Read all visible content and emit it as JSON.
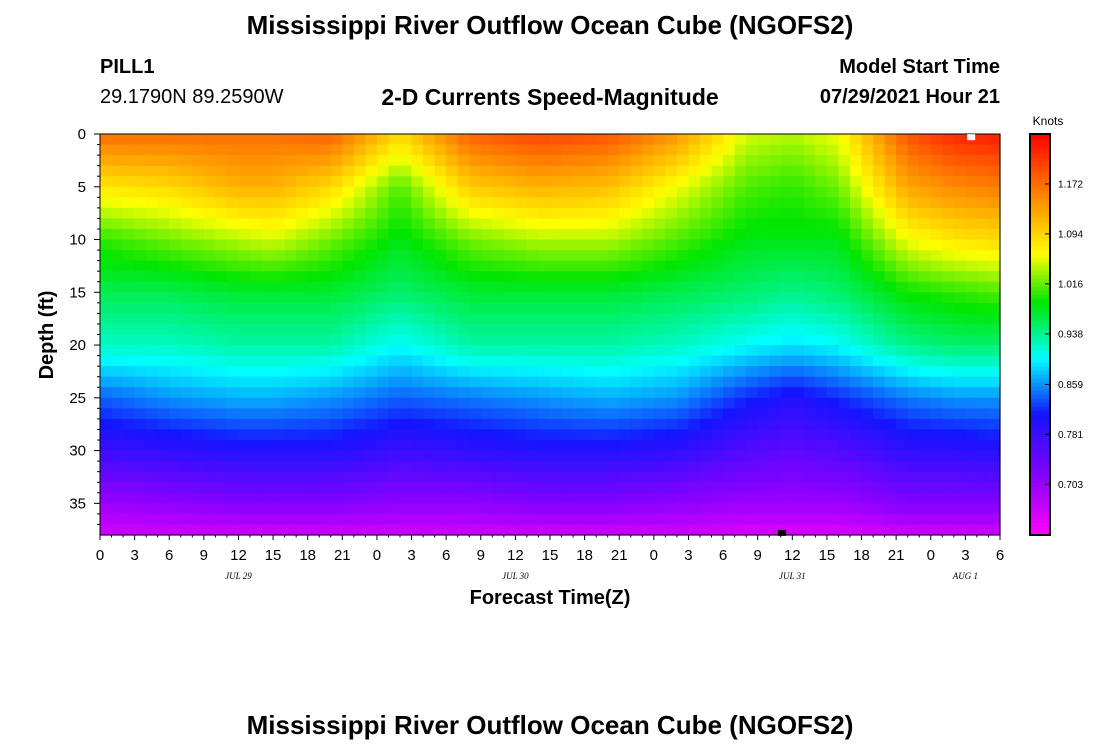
{
  "header": {
    "title": "Mississippi River Outflow Ocean Cube (NGOFS2)",
    "station_id": "PILL1",
    "station_coords": "29.1790N  89.2590W",
    "plot_title": "2-D Currents Speed-Magnitude",
    "model_start_label": "Model Start Time",
    "model_start_value": "07/29/2021 Hour 21"
  },
  "footer": {
    "title": "Mississippi River Outflow Ocean Cube (NGOFS2)"
  },
  "chart_data": {
    "type": "heatmap",
    "title": "2-D Currents Speed-Magnitude",
    "xlabel": "Forecast Time(Z)",
    "ylabel": "Depth (ft)",
    "x_hours_range": [
      0,
      78
    ],
    "y_range": [
      0,
      38
    ],
    "y_inverted": true,
    "x_tick_labels": [
      "0",
      "3",
      "6",
      "9",
      "12",
      "15",
      "18",
      "21",
      "0",
      "3",
      "6",
      "9",
      "12",
      "15",
      "18",
      "21",
      "0",
      "3",
      "6",
      "9",
      "12",
      "15",
      "18",
      "21",
      "0",
      "3",
      "6"
    ],
    "date_labels": [
      {
        "label": "JUL 29",
        "hour": 12
      },
      {
        "label": "JUL 30",
        "hour": 36
      },
      {
        "label": "JUL 31",
        "hour": 60
      },
      {
        "label": "AUG 1",
        "hour": 75
      }
    ],
    "y_ticks": [
      0,
      5,
      10,
      15,
      20,
      25,
      30,
      35
    ],
    "colorbar": {
      "title": "Knots",
      "range": [
        0.624,
        1.25
      ],
      "tick_values": [
        1.172,
        1.094,
        1.016,
        0.938,
        0.859,
        0.781,
        0.703
      ],
      "tick_labels": [
        "1.172",
        "1.094",
        "1.016",
        "0.938",
        "0.859",
        "0.781",
        "0.703"
      ]
    },
    "profile_depths_ft": [
      0,
      5,
      10,
      15,
      20,
      25,
      30,
      35,
      38
    ],
    "profiles": [
      {
        "hour": 0,
        "speeds": [
          1.17,
          1.08,
          1.0,
          0.96,
          0.92,
          0.84,
          0.78,
          0.7,
          0.66
        ]
      },
      {
        "hour": 6,
        "speeds": [
          1.17,
          1.09,
          1.02,
          0.96,
          0.92,
          0.86,
          0.79,
          0.71,
          0.66
        ]
      },
      {
        "hour": 12,
        "speeds": [
          1.17,
          1.12,
          1.04,
          0.97,
          0.93,
          0.87,
          0.8,
          0.72,
          0.66
        ]
      },
      {
        "hour": 15,
        "speeds": [
          1.17,
          1.12,
          1.05,
          0.97,
          0.93,
          0.87,
          0.8,
          0.72,
          0.66
        ]
      },
      {
        "hour": 20,
        "speeds": [
          1.18,
          1.09,
          1.02,
          0.97,
          0.93,
          0.86,
          0.8,
          0.72,
          0.66
        ]
      },
      {
        "hour": 26,
        "speeds": [
          1.09,
          1.01,
          0.98,
          0.95,
          0.9,
          0.84,
          0.78,
          0.71,
          0.66
        ]
      },
      {
        "hour": 32,
        "speeds": [
          1.18,
          1.1,
          1.02,
          0.97,
          0.93,
          0.85,
          0.79,
          0.71,
          0.66
        ]
      },
      {
        "hour": 38,
        "speeds": [
          1.2,
          1.12,
          1.04,
          0.97,
          0.93,
          0.86,
          0.8,
          0.72,
          0.66
        ]
      },
      {
        "hour": 44,
        "speeds": [
          1.19,
          1.11,
          1.04,
          0.97,
          0.93,
          0.87,
          0.8,
          0.72,
          0.66
        ]
      },
      {
        "hour": 50,
        "speeds": [
          1.14,
          1.06,
          1.01,
          0.96,
          0.92,
          0.86,
          0.79,
          0.71,
          0.66
        ]
      },
      {
        "hour": 56,
        "speeds": [
          1.05,
          1.01,
          0.98,
          0.95,
          0.9,
          0.82,
          0.76,
          0.7,
          0.65
        ]
      },
      {
        "hour": 60,
        "speeds": [
          1.04,
          1.0,
          0.98,
          0.94,
          0.89,
          0.8,
          0.75,
          0.7,
          0.65
        ]
      },
      {
        "hour": 64,
        "speeds": [
          1.06,
          1.02,
          0.98,
          0.95,
          0.9,
          0.82,
          0.76,
          0.7,
          0.65
        ]
      },
      {
        "hour": 70,
        "speeds": [
          1.19,
          1.13,
          1.06,
          0.99,
          0.94,
          0.85,
          0.79,
          0.72,
          0.66
        ]
      },
      {
        "hour": 74,
        "speeds": [
          1.22,
          1.15,
          1.08,
          1.0,
          0.95,
          0.86,
          0.79,
          0.72,
          0.66
        ]
      },
      {
        "hour": 78,
        "speeds": [
          1.23,
          1.16,
          1.09,
          1.01,
          0.95,
          0.86,
          0.8,
          0.72,
          0.66
        ]
      }
    ],
    "markers": [
      {
        "hour": 75.5,
        "depth": 0.3,
        "color": "#ffffff"
      },
      {
        "hour": 59.1,
        "depth": 37.8,
        "color": "#000000"
      }
    ]
  }
}
